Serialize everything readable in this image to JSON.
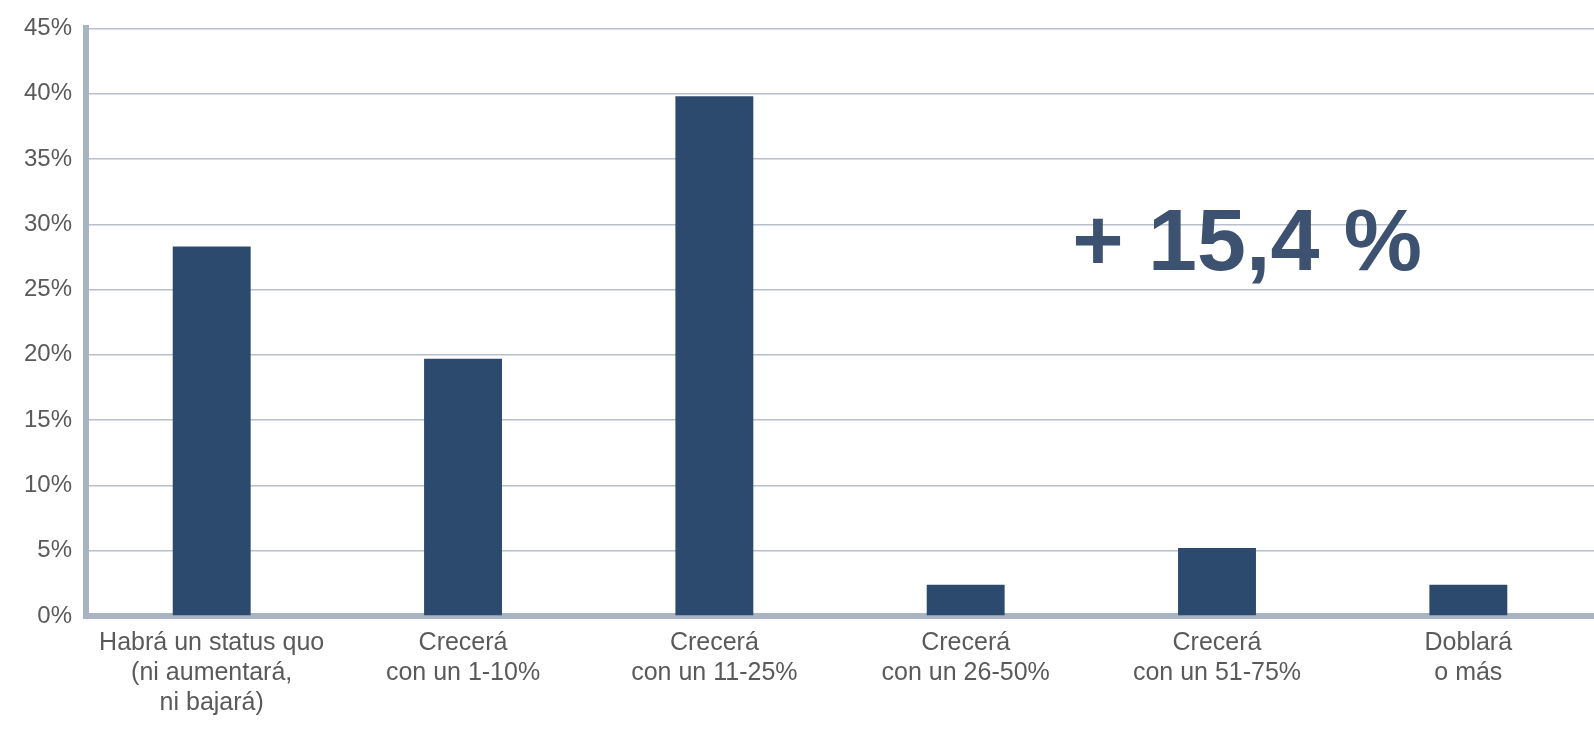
{
  "chart_data": {
    "type": "bar",
    "categories": [
      "Habrá un status quo\n(ni aumentará,\nni bajará)",
      "Crecerá\ncon un 1-10%",
      "Crecerá\ncon un 11-25%",
      "Crecerá\ncon un 26-50%",
      "Crecerá\ncon un 51-75%",
      "Doblará\no más"
    ],
    "values": [
      28.3,
      19.7,
      39.8,
      2.4,
      5.2,
      2.4
    ],
    "color": "#2c4a6e",
    "ylim": [
      0,
      45
    ],
    "yticks": [
      {
        "value": 0,
        "label": "0%"
      },
      {
        "value": 5,
        "label": "5%"
      },
      {
        "value": 10,
        "label": "10%"
      },
      {
        "value": 15,
        "label": "15%"
      },
      {
        "value": 20,
        "label": "20%"
      },
      {
        "value": 25,
        "label": "25%"
      },
      {
        "value": 30,
        "label": "30%"
      },
      {
        "value": 35,
        "label": "35%"
      },
      {
        "value": 40,
        "label": "40%"
      },
      {
        "value": 45,
        "label": "45%"
      }
    ],
    "grid": "y",
    "legend": false,
    "annotations": [
      "+ 15,4 %"
    ]
  }
}
